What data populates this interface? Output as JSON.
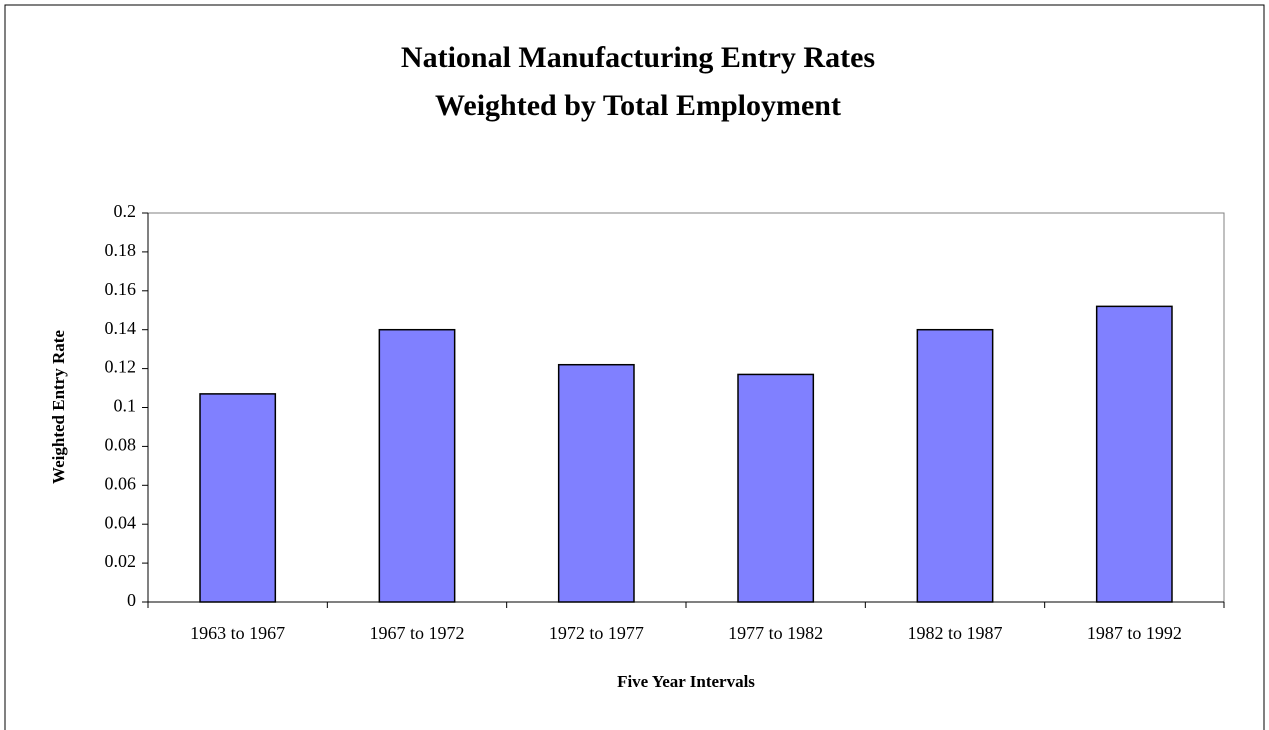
{
  "chart_data": {
    "type": "bar",
    "title": [
      "National Manufacturing Entry Rates",
      "Weighted by Total Employment"
    ],
    "x_label": "Five Year Intervals",
    "y_label": "Weighted Entry Rate",
    "categories": [
      "1963 to 1967",
      "1967 to 1972",
      "1972 to 1977",
      "1977 to 1982",
      "1982 to 1987",
      "1987 to 1992"
    ],
    "values": [
      0.107,
      0.14,
      0.122,
      0.117,
      0.14,
      0.152
    ],
    "color": "#8080ff",
    "ylim": [
      0,
      0.2
    ],
    "yticks": [
      0,
      0.02,
      0.04,
      0.06,
      0.08,
      0.1,
      0.12,
      0.14,
      0.16,
      0.18,
      0.2
    ],
    "grid": false
  }
}
